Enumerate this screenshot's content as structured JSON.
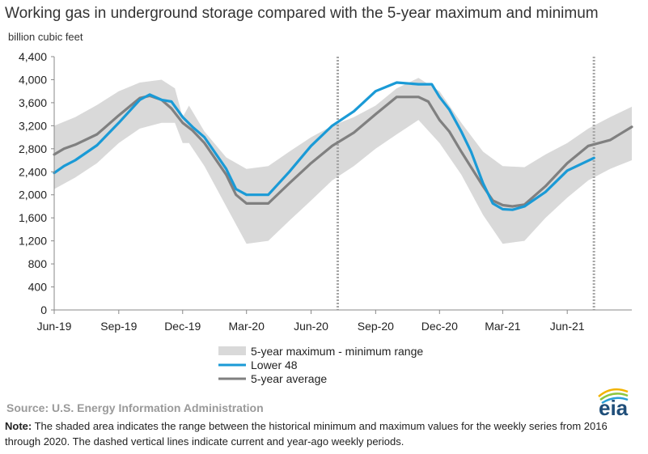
{
  "title": "Working gas in underground  storage compared with the 5-year maximum and minimum",
  "unit_label": "billion cubic feet",
  "source": "Source: U.S. Energy Information Administration",
  "note_label": "Note:",
  "note_text": " The shaded area indicates the range between the historical minimum and maximum values for the weekly series from 2016 through 2020. The dashed vertical lines indicate current and year-ago weekly periods.",
  "logo_text": "eia",
  "colors": {
    "range_band": "#d9d9d9",
    "lower48": "#1a9ad6",
    "average": "#808080",
    "axis": "#888888",
    "dashed_line": "#a6a6a6",
    "logo_text": "#1f4e79",
    "logo_arcs": [
      "#f2b300",
      "#8dc63f",
      "#2a9fd6"
    ]
  },
  "chart_data": {
    "type": "line",
    "ylabel": "billion cubic feet",
    "ylim": [
      0,
      4400
    ],
    "yticks": [
      0,
      400,
      800,
      1200,
      1600,
      2000,
      2400,
      2800,
      3200,
      3600,
      4000,
      4400
    ],
    "ytick_labels": [
      "0",
      "400",
      "800",
      "1,200",
      "1,600",
      "2,000",
      "2,400",
      "2,800",
      "3,200",
      "3,600",
      "4,000",
      "4,400"
    ],
    "xlim": [
      "2019-06-01",
      "2021-09-01"
    ],
    "xticks": [
      "2019-06-01",
      "2019-09-01",
      "2019-12-01",
      "2020-03-01",
      "2020-06-01",
      "2020-09-01",
      "2020-12-01",
      "2021-03-01",
      "2021-06-01"
    ],
    "xtick_labels": [
      "Jun-19",
      "Sep-19",
      "Dec-19",
      "Mar-20",
      "Jun-20",
      "Sep-20",
      "Dec-20",
      "Mar-21",
      "Jun-21"
    ],
    "grid": false,
    "legend_position": "bottom",
    "dashed_lines": [
      "2020-07-09",
      "2021-07-09"
    ],
    "range_band": {
      "name": "5-year maximum - minimum range",
      "x": [
        "2019-06-01",
        "2019-07-01",
        "2019-08-01",
        "2019-09-01",
        "2019-10-01",
        "2019-11-01",
        "2019-11-20",
        "2019-12-01",
        "2019-12-10",
        "2020-01-01",
        "2020-02-01",
        "2020-03-01",
        "2020-04-01",
        "2020-05-01",
        "2020-06-01",
        "2020-07-01",
        "2020-08-01",
        "2020-09-01",
        "2020-10-01",
        "2020-11-01",
        "2020-12-01",
        "2021-01-01",
        "2021-02-01",
        "2021-03-01",
        "2021-04-01",
        "2021-05-01",
        "2021-06-01",
        "2021-07-01",
        "2021-08-01",
        "2021-09-01"
      ],
      "max": [
        3200,
        3350,
        3560,
        3800,
        3950,
        4000,
        3850,
        3350,
        3550,
        3100,
        2650,
        2450,
        2500,
        2750,
        3000,
        3200,
        3350,
        3550,
        3850,
        4030,
        3800,
        3250,
        2750,
        2500,
        2480,
        2700,
        2900,
        3150,
        3350,
        3530
      ],
      "min": [
        2100,
        2300,
        2550,
        2900,
        3150,
        3250,
        3250,
        2900,
        2900,
        2500,
        1800,
        1150,
        1200,
        1550,
        1900,
        2250,
        2500,
        2800,
        3050,
        3300,
        2900,
        2350,
        1650,
        1150,
        1200,
        1600,
        1950,
        2250,
        2450,
        2600
      ]
    },
    "series": [
      {
        "name": "Lower 48",
        "x": [
          "2019-06-01",
          "2019-06-15",
          "2019-07-01",
          "2019-08-01",
          "2019-09-01",
          "2019-10-01",
          "2019-10-15",
          "2019-11-01",
          "2019-11-15",
          "2019-12-01",
          "2019-12-15",
          "2020-01-01",
          "2020-02-01",
          "2020-02-15",
          "2020-03-01",
          "2020-04-01",
          "2020-05-01",
          "2020-06-01",
          "2020-07-01",
          "2020-08-01",
          "2020-09-01",
          "2020-10-01",
          "2020-11-01",
          "2020-11-20",
          "2020-12-01",
          "2020-12-15",
          "2021-01-01",
          "2021-01-15",
          "2021-02-01",
          "2021-02-15",
          "2021-03-01",
          "2021-03-15",
          "2021-04-01",
          "2021-05-01",
          "2021-06-01",
          "2021-07-09"
        ],
        "values": [
          2380,
          2500,
          2600,
          2860,
          3250,
          3650,
          3740,
          3650,
          3620,
          3350,
          3180,
          3000,
          2450,
          2100,
          2000,
          2000,
          2400,
          2850,
          3200,
          3450,
          3800,
          3950,
          3920,
          3920,
          3700,
          3480,
          3100,
          2750,
          2200,
          1850,
          1750,
          1740,
          1800,
          2050,
          2420,
          2640
        ]
      },
      {
        "name": "5-year average",
        "x": [
          "2019-06-01",
          "2019-06-15",
          "2019-07-01",
          "2019-08-01",
          "2019-09-01",
          "2019-10-01",
          "2019-10-15",
          "2019-11-01",
          "2019-11-15",
          "2019-12-01",
          "2019-12-15",
          "2020-01-01",
          "2020-02-01",
          "2020-02-15",
          "2020-03-01",
          "2020-04-01",
          "2020-05-01",
          "2020-06-01",
          "2020-07-01",
          "2020-08-01",
          "2020-09-01",
          "2020-10-01",
          "2020-11-01",
          "2020-11-15",
          "2020-12-01",
          "2020-12-15",
          "2021-01-01",
          "2021-02-01",
          "2021-02-15",
          "2021-03-01",
          "2021-03-15",
          "2021-04-01",
          "2021-05-01",
          "2021-06-01",
          "2021-07-01",
          "2021-08-01",
          "2021-09-01"
        ],
        "values": [
          2700,
          2800,
          2870,
          3050,
          3380,
          3680,
          3720,
          3650,
          3500,
          3250,
          3120,
          2900,
          2350,
          2000,
          1850,
          1850,
          2200,
          2550,
          2850,
          3080,
          3400,
          3700,
          3700,
          3620,
          3300,
          3100,
          2750,
          2150,
          1900,
          1820,
          1800,
          1830,
          2150,
          2550,
          2850,
          2950,
          3180
        ]
      }
    ]
  }
}
